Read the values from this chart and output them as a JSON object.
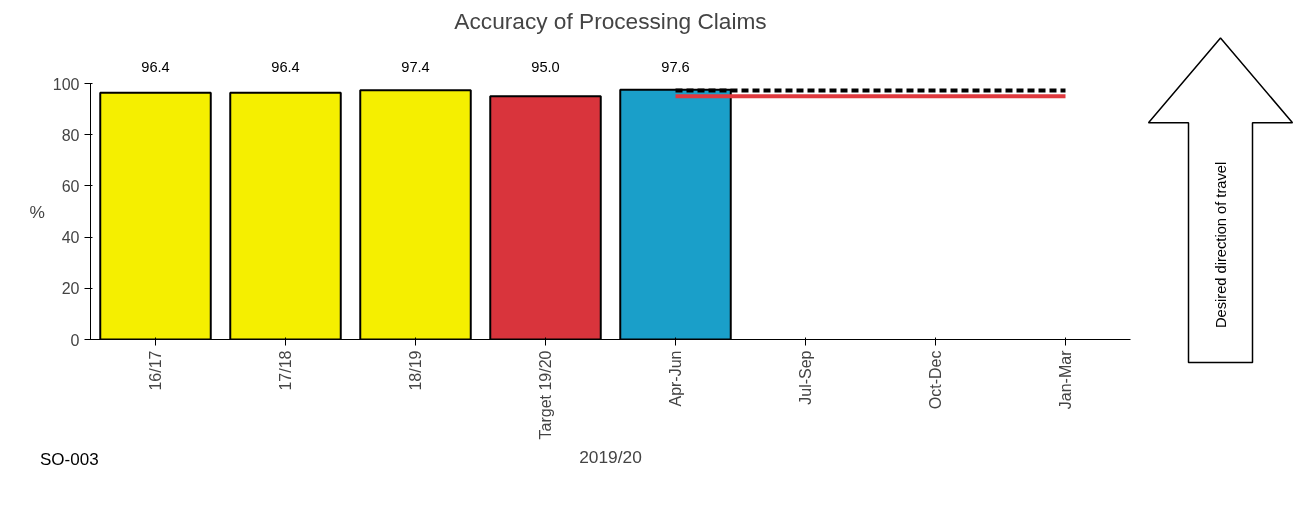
{
  "chart_data": {
    "type": "bar",
    "title": "Accuracy of Processing Claims",
    "xlabel": "2019/20",
    "ylabel": "%",
    "categories": [
      "16/17",
      "17/18",
      "18/19",
      "Target 19/20",
      "Apr-Jun",
      "Jul-Sep",
      "Oct-Dec",
      "Jan-Mar"
    ],
    "ylim": [
      0,
      100
    ],
    "yticks": [
      0,
      20,
      40,
      60,
      80,
      100
    ],
    "series": [
      {
        "colors": [
          "#f5ef00",
          "#f5ef00",
          "#f5ef00",
          "#d9343c",
          "#1a9fc9",
          "#ffffff",
          "#ffffff",
          "#ffffff"
        ],
        "values": [
          96.4,
          96.4,
          97.4,
          95.0,
          97.6,
          null,
          null,
          null
        ],
        "value_labels": [
          "96.4",
          "96.4",
          "97.4",
          "95.0",
          "97.6",
          null,
          null,
          null
        ]
      },
      {
        "type": "line",
        "color": "#000000",
        "line_style": "dashed",
        "values": [
          null,
          null,
          null,
          null,
          97.3,
          97.3,
          97.3,
          97.3
        ]
      },
      {
        "type": "line",
        "color": "#e0393e",
        "line_style": "solid",
        "values": [
          null,
          null,
          null,
          null,
          95,
          95,
          95,
          95
        ]
      }
    ],
    "annotations": [
      "Desired direction of travel",
      "SO-003"
    ]
  }
}
